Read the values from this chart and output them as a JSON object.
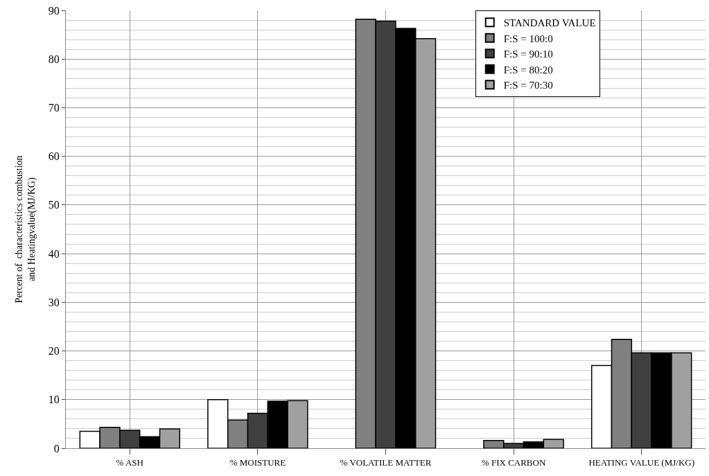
{
  "chart_data": {
    "type": "bar",
    "ylabel": "Percent of  characteristics combustion\nand Heatingvalue(MJ/KG)",
    "categories": [
      "% ASH",
      "% MOISTURE",
      "% VOLATILE MATTER",
      "% FIX CARBON",
      "HEATING VALUE (MJ/KG)"
    ],
    "series": [
      {
        "name": "STANDARD VALUE",
        "color": "#ffffff",
        "values": [
          3.5,
          10,
          null,
          null,
          17
        ]
      },
      {
        "name": "F:S = 100:0",
        "color": "#808080",
        "values": [
          4.3,
          5.8,
          88.2,
          1.6,
          22.4
        ]
      },
      {
        "name": "F:S = 90:10",
        "color": "#404040",
        "values": [
          3.7,
          7.2,
          87.8,
          1.0,
          19.6
        ]
      },
      {
        "name": "F:S = 80:20",
        "color": "#000000",
        "values": [
          2.4,
          9.7,
          86.3,
          1.3,
          19.6
        ]
      },
      {
        "name": "F:S = 70:30",
        "color": "#a0a0a0",
        "values": [
          4.0,
          9.8,
          84.2,
          1.8,
          19.6
        ]
      }
    ],
    "ylim": [
      0,
      90
    ],
    "yticks": [
      0,
      10,
      20,
      30,
      40,
      50,
      60,
      70,
      80,
      90
    ],
    "grid": true,
    "legend": "top right"
  }
}
